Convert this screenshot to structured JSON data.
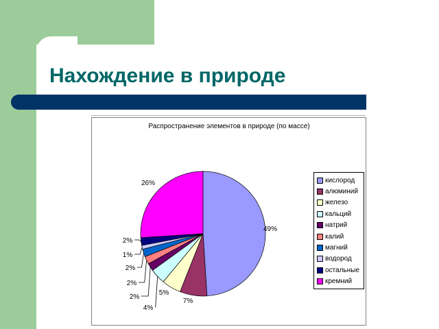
{
  "slide": {
    "title": "Нахождение в природе",
    "colors": {
      "background_accent": "#9ccc9a",
      "title": "#006666",
      "bar": "#003366"
    }
  },
  "chart_data": {
    "type": "pie",
    "title": "Распространение элементов в природе (по массе)",
    "categories": [
      "кислород",
      "алюминий",
      "железо",
      "кальций",
      "натрий",
      "калий",
      "магний",
      "водород",
      "остальные",
      "кремний"
    ],
    "values": [
      49,
      7,
      5,
      4,
      2,
      2,
      2,
      1,
      2,
      26
    ],
    "labels": [
      "49%",
      "7%",
      "5%",
      "4%",
      "2%",
      "2%",
      "2%",
      "1%",
      "2%",
      "26%"
    ],
    "colors": [
      "#9999ff",
      "#993366",
      "#ffffcc",
      "#ccffff",
      "#660066",
      "#ff8080",
      "#0066cc",
      "#ccccff",
      "#000080",
      "#ff00ff"
    ],
    "start": "top",
    "direction": "clockwise",
    "legend_placement": "right"
  }
}
